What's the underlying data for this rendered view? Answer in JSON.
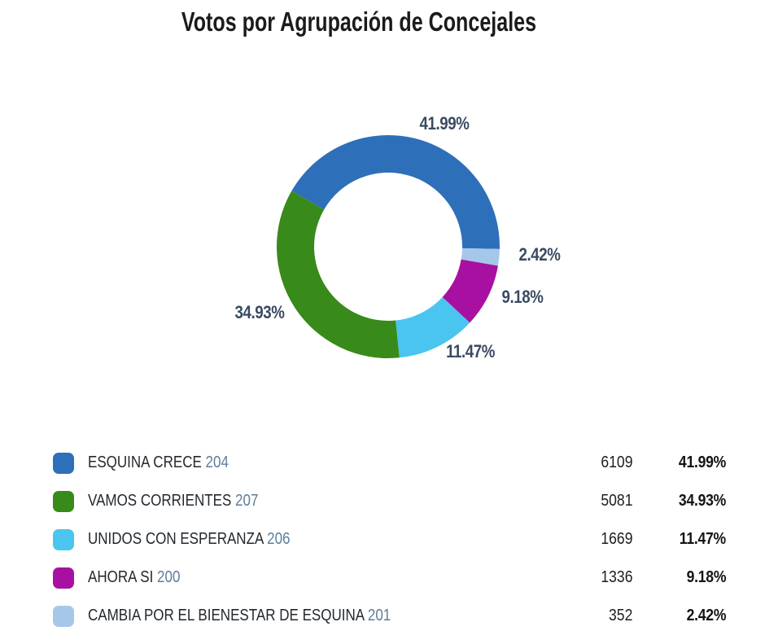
{
  "title": "Votos por Agrupación de Concejales",
  "chart_data": {
    "type": "pie",
    "subtype": "donut",
    "title": "Votos por Agrupación de Concejales",
    "legend_position": "bottom-table",
    "start_angle_deg": -60,
    "clockwise_draw_order": [
      0,
      4,
      3,
      2,
      1
    ],
    "series": [
      {
        "name": "ESQUINA CRECE",
        "list_number": "204",
        "votes": "6109",
        "percent": 41.99,
        "percent_label": "41.99%",
        "color": "#2E6FB9"
      },
      {
        "name": "VAMOS CORRIENTES",
        "list_number": "207",
        "votes": "5081",
        "percent": 34.93,
        "percent_label": "34.93%",
        "color": "#388A1A"
      },
      {
        "name": "UNIDOS CON ESPERANZA",
        "list_number": "206",
        "votes": "1669",
        "percent": 11.47,
        "percent_label": "11.47%",
        "color": "#4AC5F0"
      },
      {
        "name": "AHORA SI",
        "list_number": "200",
        "votes": "1336",
        "percent": 9.18,
        "percent_label": "9.18%",
        "color": "#A810A2"
      },
      {
        "name": "CAMBIA POR EL BIENESTAR DE ESQUINA",
        "list_number": "201",
        "votes": "352",
        "percent": 2.42,
        "percent_label": "2.42%",
        "color": "#A5C8E9"
      }
    ],
    "colors": {
      "slice_label_text": "#3A4A63",
      "title_text": "#1B1B1B",
      "party_name_text": "#23292F",
      "list_number_text": "#5F7D99",
      "votes_text": "#1E1E1E",
      "percent_text": "#141414"
    }
  }
}
